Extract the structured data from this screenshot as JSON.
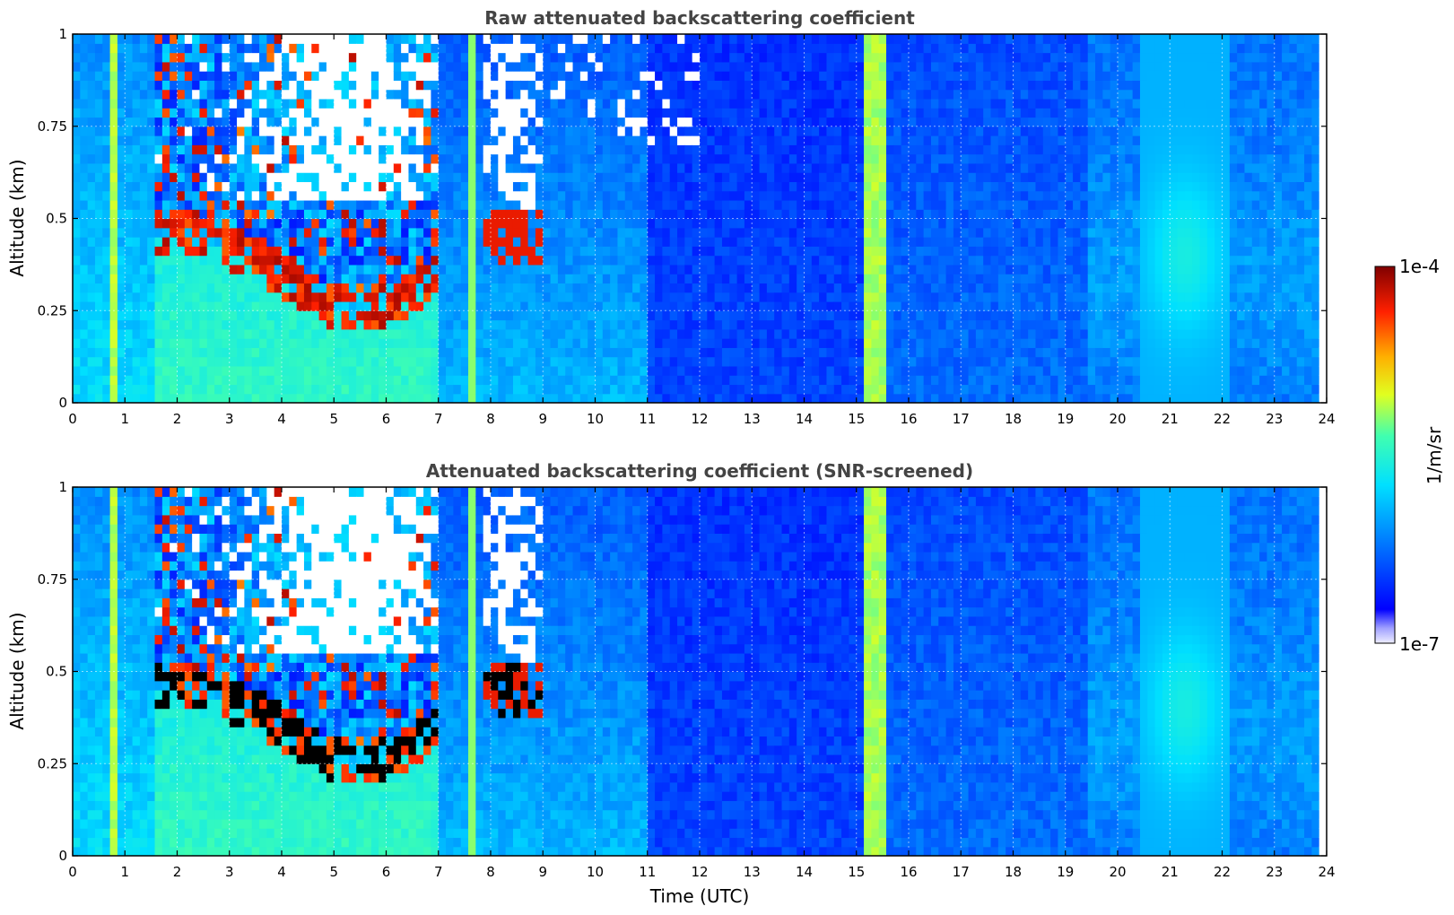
{
  "chart_data": [
    {
      "type": "heatmap",
      "title": "Raw attenuated backscattering coefficient",
      "xlabel": "",
      "ylabel": "Altitude (km)",
      "xlim": [
        0,
        24
      ],
      "ylim": [
        0,
        1
      ],
      "x_ticks": [
        "0",
        "1",
        "2",
        "3",
        "4",
        "5",
        "6",
        "7",
        "8",
        "9",
        "10",
        "11",
        "12",
        "13",
        "14",
        "15",
        "16",
        "17",
        "18",
        "19",
        "20",
        "21",
        "22",
        "23",
        "24"
      ],
      "y_ticks": [
        "0",
        "0.25",
        "0.5",
        "0.75",
        "1"
      ],
      "y_tick_values": [
        0,
        0.25,
        0.5,
        0.75,
        1
      ],
      "grid": true,
      "screened": false
    },
    {
      "type": "heatmap",
      "title": "Attenuated backscattering coefficient (SNR-screened)",
      "xlabel": "Time (UTC)",
      "ylabel": "Altitude (km)",
      "xlim": [
        0,
        24
      ],
      "ylim": [
        0,
        1
      ],
      "x_ticks": [
        "0",
        "1",
        "2",
        "3",
        "4",
        "5",
        "6",
        "7",
        "8",
        "9",
        "10",
        "11",
        "12",
        "13",
        "14",
        "15",
        "16",
        "17",
        "18",
        "19",
        "20",
        "21",
        "22",
        "23",
        "24"
      ],
      "y_ticks": [
        "0",
        "0.25",
        "0.5",
        "0.75",
        "1"
      ],
      "y_tick_values": [
        0,
        0.25,
        0.5,
        0.75,
        1
      ],
      "grid": true,
      "screened": true
    }
  ],
  "colorbar": {
    "label": "1/m/sr",
    "max_label": "1e-4",
    "min_label": "1e-7",
    "scale": "log",
    "range": [
      1e-07,
      0.0001
    ],
    "colormap": "jet"
  }
}
